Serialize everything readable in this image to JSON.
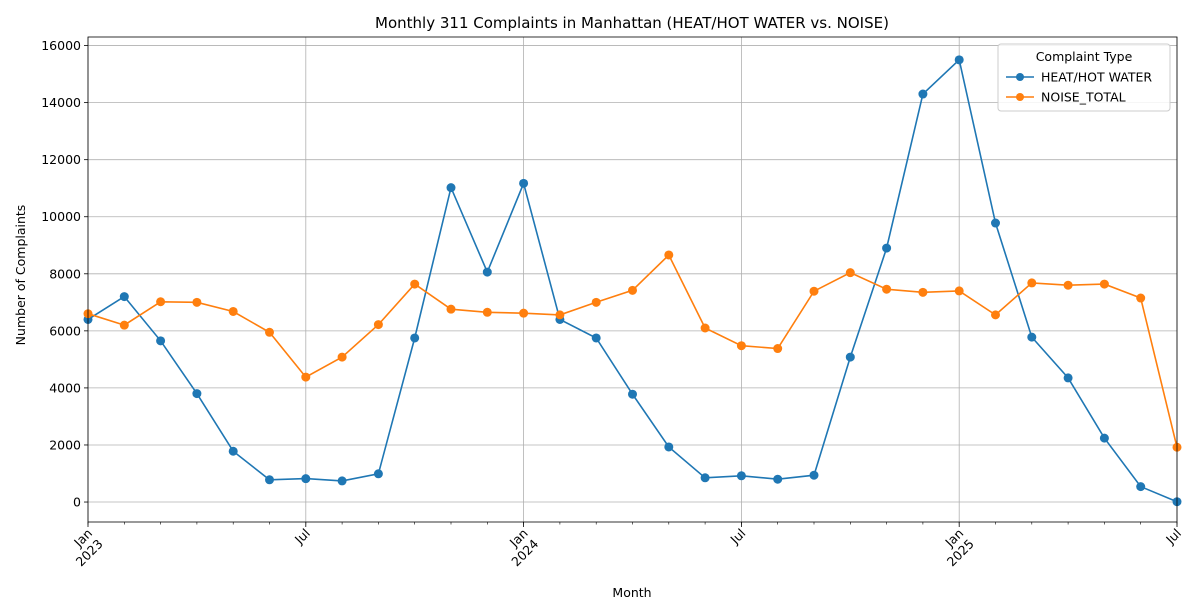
{
  "chart_data": {
    "type": "line",
    "title": "Monthly 311 Complaints in Manhattan (HEAT/HOT WATER vs. NOISE)",
    "xlabel": "Month",
    "ylabel": "Number of Complaints",
    "x": [
      "2023-01",
      "2023-02",
      "2023-03",
      "2023-04",
      "2023-05",
      "2023-06",
      "2023-07",
      "2023-08",
      "2023-09",
      "2023-10",
      "2023-11",
      "2023-12",
      "2024-01",
      "2024-02",
      "2024-03",
      "2024-04",
      "2024-05",
      "2024-06",
      "2024-07",
      "2024-08",
      "2024-09",
      "2024-10",
      "2024-11",
      "2024-12",
      "2025-01",
      "2025-02",
      "2025-03",
      "2025-04",
      "2025-05",
      "2025-06",
      "2025-07"
    ],
    "xlim": [
      "2023-01",
      "2025-07"
    ],
    "ylim": [
      -700,
      16300
    ],
    "yticks": [
      0,
      2000,
      4000,
      6000,
      8000,
      10000,
      12000,
      14000,
      16000
    ],
    "xticks": [
      {
        "at": "2023-01",
        "label": "Jan",
        "sub": "2023"
      },
      {
        "at": "2023-07",
        "label": "Jul",
        "sub": ""
      },
      {
        "at": "2024-01",
        "label": "Jan",
        "sub": "2024"
      },
      {
        "at": "2024-07",
        "label": "Jul",
        "sub": ""
      },
      {
        "at": "2025-01",
        "label": "Jan",
        "sub": "2025"
      },
      {
        "at": "2025-07",
        "label": "Jul",
        "sub": ""
      }
    ],
    "grid": true,
    "legend": {
      "title": "Complaint Type",
      "placement": "top-right"
    },
    "series": [
      {
        "name": "HEAT/HOT WATER",
        "color": "#1f77b4",
        "values": [
          6400,
          7200,
          5650,
          3800,
          1780,
          780,
          820,
          740,
          990,
          5750,
          11020,
          8060,
          11170,
          6400,
          5750,
          3780,
          1930,
          850,
          920,
          800,
          940,
          5080,
          8900,
          14300,
          15500,
          9780,
          5780,
          4350,
          2240,
          540,
          10
        ]
      },
      {
        "name": "NOISE_TOTAL",
        "color": "#ff7f0e",
        "values": [
          6600,
          6200,
          7020,
          7000,
          6680,
          5950,
          4380,
          5080,
          6220,
          7640,
          6760,
          6650,
          6620,
          6560,
          7000,
          7420,
          8660,
          6100,
          5480,
          5380,
          7390,
          8040,
          7460,
          7350,
          7400,
          6560,
          7680,
          7600,
          7640,
          7150,
          1920
        ]
      }
    ]
  }
}
